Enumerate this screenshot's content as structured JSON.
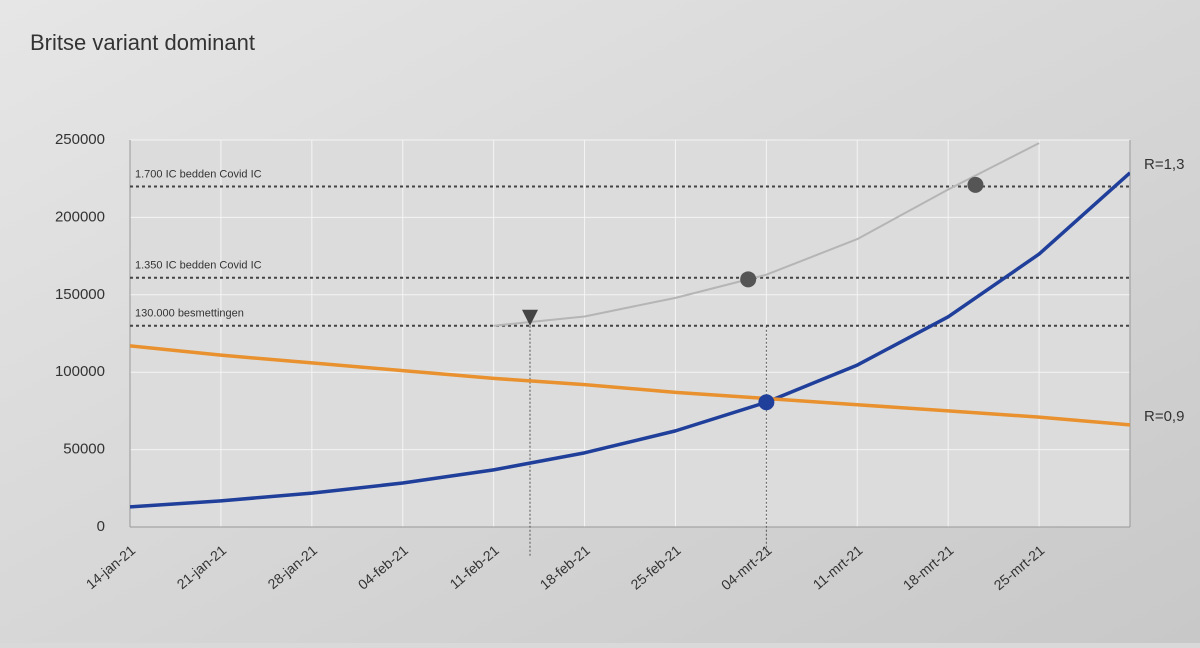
{
  "chart_data": {
    "type": "line",
    "title": "Britse variant dominant",
    "categories": [
      "14-jan-21",
      "21-jan-21",
      "28-jan-21",
      "04-feb-21",
      "11-feb-21",
      "18-feb-21",
      "25-feb-21",
      "04-mrt-21",
      "11-mrt-21",
      "18-mrt-21",
      "25-mrt-21",
      null
    ],
    "series": [
      {
        "name": "R=1,3",
        "color": "#1f3f9a",
        "values": [
          13000,
          16900,
          21900,
          28400,
          36900,
          47900,
          62100,
          80600,
          104600,
          135800,
          176300,
          228800
        ]
      },
      {
        "name": "R=0,9",
        "color": "#e8912e",
        "values": [
          117000,
          111000,
          106000,
          101000,
          96000,
          92000,
          87000,
          83000,
          79000,
          75000,
          71000,
          66000
        ]
      },
      {
        "color": "#b5b5b5",
        "values": [
          null,
          null,
          null,
          null,
          130000,
          136000,
          148000,
          163000,
          186000,
          218000,
          248000,
          null
        ]
      }
    ],
    "reference_lines": [
      {
        "value": 220000,
        "label": "1.700 IC bedden Covid IC"
      },
      {
        "value": 161000,
        "label": "1.350 IC bedden Covid IC"
      },
      {
        "value": 130000,
        "label": "130.000 besmettingen"
      }
    ],
    "markers": [
      {
        "x": 6.8,
        "y": 160000,
        "color": "#555555",
        "shape": "circle"
      },
      {
        "x": 9.3,
        "y": 221000,
        "color": "#555555",
        "shape": "circle"
      },
      {
        "x": 7,
        "y": 80600,
        "color": "#1f3f9a",
        "shape": "circle"
      },
      {
        "x": 4.4,
        "y": 130000,
        "color": "#444444",
        "shape": "triangle"
      }
    ],
    "vertical_lines": [
      4.4,
      7
    ],
    "ylim": [
      0,
      250000
    ],
    "yticks": [
      0,
      50000,
      100000,
      150000,
      200000,
      250000
    ],
    "grid": true
  }
}
